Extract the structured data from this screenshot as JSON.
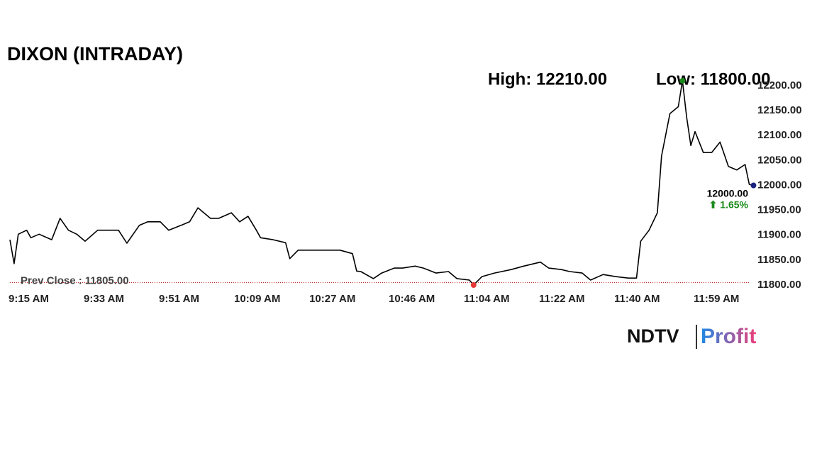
{
  "chart_data": {
    "type": "line",
    "title": "DIXON (INTRADAY)",
    "annotations": [
      {
        "text": "High: 12210.00"
      },
      {
        "text": "Low: 11800.00"
      }
    ],
    "x": [
      "9:15 AM",
      "9:16 AM",
      "9:17 AM",
      "9:19 AM",
      "9:20 AM",
      "9:22 AM",
      "9:25 AM",
      "9:27 AM",
      "9:29 AM",
      "9:31 AM",
      "9:33 AM",
      "9:36 AM",
      "9:38 AM",
      "9:41 AM",
      "9:43 AM",
      "9:46 AM",
      "9:48 AM",
      "9:51 AM",
      "9:53 AM",
      "9:56 AM",
      "9:58 AM",
      "10:00 AM",
      "10:03 AM",
      "10:05 AM",
      "10:08 AM",
      "10:10 AM",
      "10:12 AM",
      "10:14 AM",
      "10:15 AM",
      "10:18 AM",
      "10:21 AM",
      "10:22 AM",
      "10:24 AM",
      "10:27 AM",
      "10:31 AM",
      "10:34 AM",
      "10:37 AM",
      "10:38 AM",
      "10:39 AM",
      "10:42 AM",
      "10:44 AM",
      "10:47 AM",
      "10:49 AM",
      "10:52 AM",
      "10:54 AM",
      "10:57 AM",
      "11:00 AM",
      "11:02 AM",
      "11:05 AM",
      "11:06 AM",
      "11:08 AM",
      "11:11 AM",
      "11:15 AM",
      "11:18 AM",
      "11:22 AM",
      "11:24 AM",
      "11:27 AM",
      "11:29 AM",
      "11:32 AM",
      "11:34 AM",
      "11:37 AM",
      "11:40 AM",
      "11:43 AM",
      "11:45 AM",
      "11:46 AM",
      "11:48 AM",
      "11:50 AM",
      "11:51 AM",
      "11:53 AM",
      "11:55 AM",
      "11:56 AM",
      "11:57 AM",
      "11:58 AM",
      "11:59 AM",
      "12:01 PM",
      "12:03 PM",
      "12:05 PM",
      "12:07 PM",
      "12:09 PM",
      "12:11 PM",
      "12:12 PM",
      "12:13 PM"
    ],
    "values": [
      11891,
      11843,
      11902,
      11910,
      11895,
      11902,
      11891,
      11934,
      11910,
      11902,
      11888,
      11910,
      11910,
      11910,
      11884,
      11920,
      11927,
      11927,
      11910,
      11920,
      11927,
      11955,
      11934,
      11934,
      11945,
      11927,
      11938,
      11910,
      11895,
      11891,
      11885,
      11853,
      11870,
      11870,
      11870,
      11870,
      11863,
      11828,
      11827,
      11813,
      11824,
      11834,
      11834,
      11838,
      11834,
      11824,
      11827,
      11813,
      11810,
      11800,
      11817,
      11824,
      11831,
      11838,
      11846,
      11834,
      11831,
      11827,
      11824,
      11810,
      11821,
      11817,
      11814,
      11814,
      11888,
      11910,
      11945,
      12059,
      12144,
      12158,
      12210,
      12137,
      12080,
      12108,
      12066,
      12066,
      12087,
      12038,
      12031,
      12042,
      12002,
      12000
    ],
    "color": "#000000",
    "ylim": [
      11800,
      12200
    ],
    "yticks": [
      {
        "value": 11800,
        "label": "11800.00"
      },
      {
        "value": 11850,
        "label": "11850.00"
      },
      {
        "value": 11900,
        "label": "11900.00"
      },
      {
        "value": 11950,
        "label": "11950.00"
      },
      {
        "value": 12000,
        "label": "12000.00"
      },
      {
        "value": 12050,
        "label": "12050.00"
      },
      {
        "value": 12100,
        "label": "12100.00"
      },
      {
        "value": 12150,
        "label": "12150.00"
      },
      {
        "value": 12200,
        "label": "12200.00"
      }
    ],
    "xticks": [
      "9:15 AM",
      "9:33 AM",
      "9:51 AM",
      "10:09 AM",
      "10:27 AM",
      "10:46 AM",
      "11:04 AM",
      "11:22 AM",
      "11:40 AM",
      "11:59 AM"
    ],
    "prev_close": {
      "value": 11805,
      "label": "Prev Close : 11805.00"
    },
    "last_label": "12000.00",
    "change": "⬆ 1.65%",
    "logo": {
      "brand": "NDTV",
      "product": "Profit"
    }
  }
}
